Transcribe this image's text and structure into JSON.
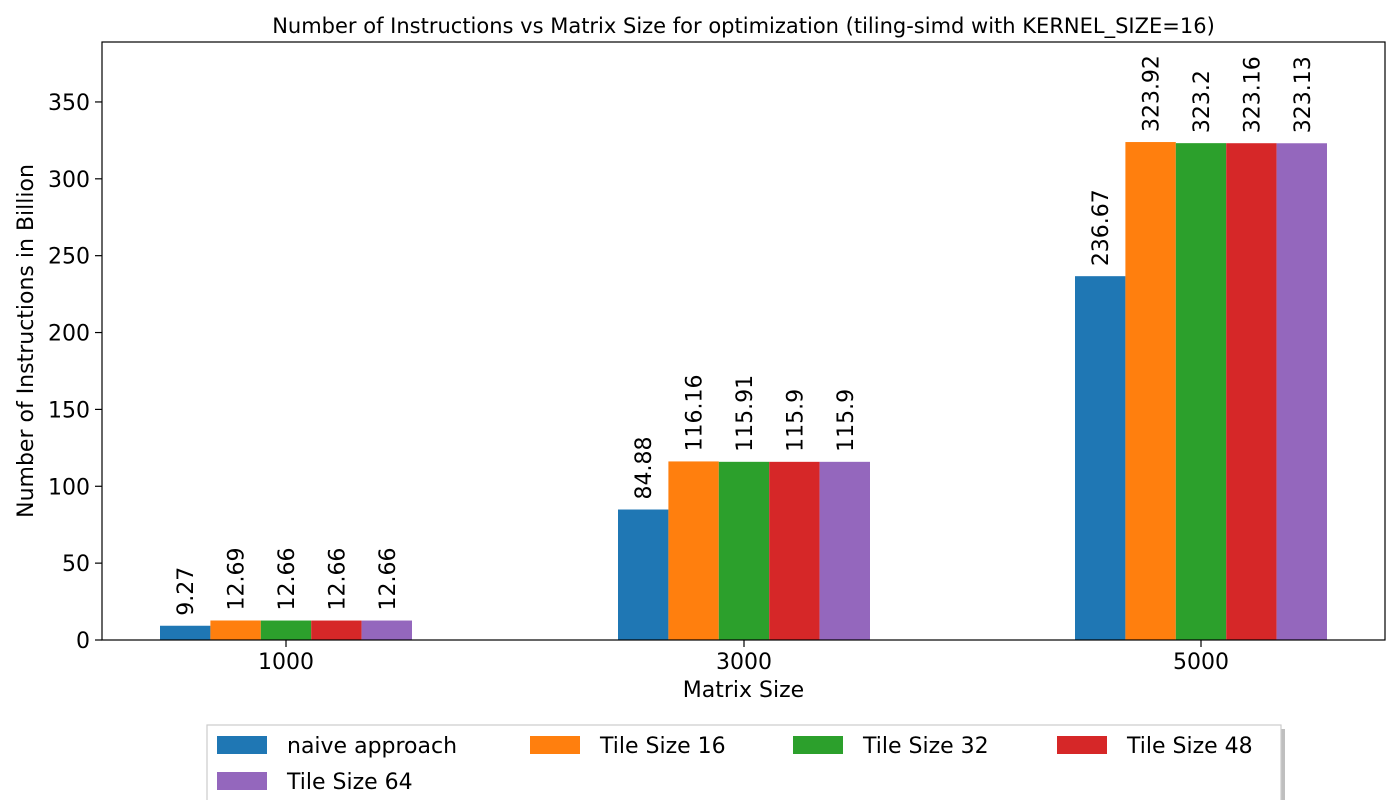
{
  "chart_data": {
    "type": "bar",
    "title": "Number of Instructions vs Matrix Size for optimization (tiling-simd with KERNEL_SIZE=16)",
    "xlabel": "Matrix Size",
    "ylabel": "Number of Instructions in Billion",
    "categories": [
      "1000",
      "3000",
      "5000"
    ],
    "ylim": [
      0,
      389
    ],
    "yticks": [
      0,
      50,
      100,
      150,
      200,
      250,
      300,
      350
    ],
    "grid": false,
    "legend_position": "bottom-center",
    "series": [
      {
        "name": "naive approach",
        "color": "#1f77b4",
        "values": [
          9.27,
          84.88,
          236.67
        ],
        "labels": [
          "9.27",
          "84.88",
          "236.67"
        ]
      },
      {
        "name": "Tile Size 16",
        "color": "#ff7f0e",
        "values": [
          12.69,
          116.16,
          323.92
        ],
        "labels": [
          "12.69",
          "116.16",
          "323.92"
        ]
      },
      {
        "name": "Tile Size 32",
        "color": "#2ca02c",
        "values": [
          12.66,
          115.91,
          323.2
        ],
        "labels": [
          "12.66",
          "115.91",
          "323.2"
        ]
      },
      {
        "name": "Tile Size 48",
        "color": "#d62728",
        "values": [
          12.66,
          115.9,
          323.16
        ],
        "labels": [
          "12.66",
          "115.9",
          "323.16"
        ]
      },
      {
        "name": "Tile Size 64",
        "color": "#9467bd",
        "values": [
          12.66,
          115.9,
          323.13
        ],
        "labels": [
          "12.66",
          "115.9",
          "323.13"
        ]
      }
    ]
  }
}
